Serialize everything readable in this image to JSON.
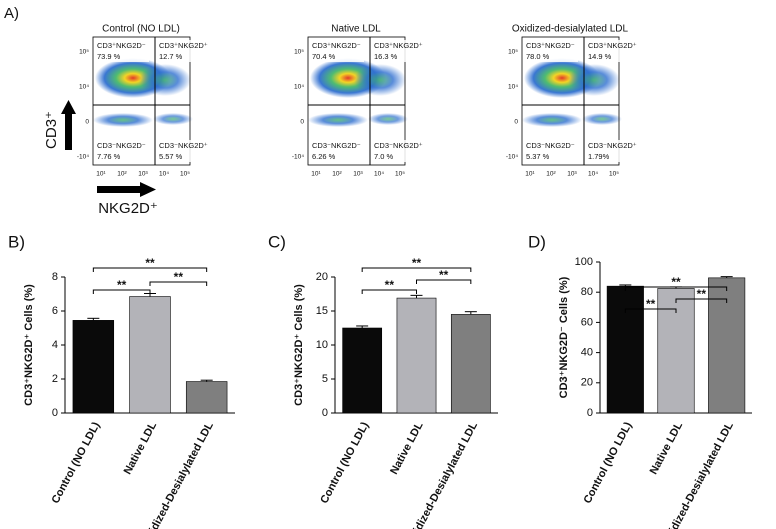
{
  "panel_a": {
    "label": "A)",
    "y_axis_label": "CD3⁺",
    "x_axis_label": "NKG2D⁺",
    "x_ticks": [
      "10¹",
      "10²",
      "10³",
      "10⁴",
      "10⁵"
    ],
    "y_ticks": [
      "10⁵",
      "10⁴",
      "0",
      "-10⁴"
    ],
    "panels": [
      {
        "title": "Control (NO LDL)",
        "quadrants": [
          {
            "label": "CD3⁺NKG2D⁻",
            "value": "73.9 %"
          },
          {
            "label": "CD3⁺NKG2D⁺",
            "value": "12.7 %"
          },
          {
            "label": "CD3⁻NKG2D⁻",
            "value": "7.76 %"
          },
          {
            "label": "CD3⁻NKG2D⁺",
            "value": "5.57 %"
          }
        ]
      },
      {
        "title": "Native LDL",
        "quadrants": [
          {
            "label": "CD3⁺NKG2D⁻",
            "value": "70.4 %"
          },
          {
            "label": "CD3⁺NKG2D⁺",
            "value": "16.3 %"
          },
          {
            "label": "CD3⁻NKG2D⁻",
            "value": "6.26 %"
          },
          {
            "label": "CD3⁻NKG2D⁺",
            "value": "7.0 %"
          }
        ]
      },
      {
        "title": "Oxidized-desialylated LDL",
        "quadrants": [
          {
            "label": "CD3⁺NKG2D⁻",
            "value": "78.0 %"
          },
          {
            "label": "CD3⁺NKG2D⁺",
            "value": "14.9 %"
          },
          {
            "label": "CD3⁻NKG2D⁻",
            "value": "5.37 %"
          },
          {
            "label": "CD3⁻NKG2D⁺",
            "value": "1.79%"
          }
        ]
      }
    ]
  },
  "chart_data": [
    {
      "type": "bar",
      "panel_label": "B)",
      "y_label": "CD3⁺NKG2D⁺ Cells (%)",
      "categories": [
        "Control (NO LDL)",
        "Native LDL",
        "Oxidized-Desialylated LDL"
      ],
      "values": [
        5.45,
        6.85,
        1.85
      ],
      "errors": [
        0.12,
        0.18,
        0.08
      ],
      "colors": [
        "#0a0a0a",
        "#b3b3b8",
        "#7f7f7f"
      ],
      "ylim": [
        0,
        8
      ],
      "yticks": [
        0,
        2,
        4,
        6,
        8
      ],
      "grid": false,
      "annotations": [
        "**",
        "**",
        "**"
      ]
    },
    {
      "type": "bar",
      "panel_label": "C)",
      "y_label": "CD3⁺NKG2D⁺ Cells (%)",
      "categories": [
        "Control (NO LDL)",
        "Native LDL",
        "Oxidized-Desialylated LDL"
      ],
      "values": [
        12.5,
        16.9,
        14.5
      ],
      "errors": [
        0.3,
        0.4,
        0.4
      ],
      "colors": [
        "#0a0a0a",
        "#b3b3b8",
        "#7f7f7f"
      ],
      "ylim": [
        0,
        20
      ],
      "yticks": [
        0,
        5,
        10,
        15,
        20
      ],
      "grid": false,
      "annotations": [
        "**",
        "**",
        "**"
      ]
    },
    {
      "type": "bar",
      "panel_label": "D)",
      "y_label": "CD3⁺NKG2D⁻ Cells (%)",
      "categories": [
        "Control (NO LDL)",
        "Native LDL",
        "Oxidized-Desialylated LDL"
      ],
      "values": [
        84,
        82.5,
        89.5
      ],
      "errors": [
        0.8,
        1,
        0.8
      ],
      "colors": [
        "#0a0a0a",
        "#b3b3b8",
        "#7f7f7f"
      ],
      "ylim": [
        0,
        100
      ],
      "yticks": [
        0,
        20,
        40,
        60,
        80,
        100
      ],
      "grid": false,
      "annotations": [
        "**",
        "**",
        "**"
      ]
    }
  ]
}
